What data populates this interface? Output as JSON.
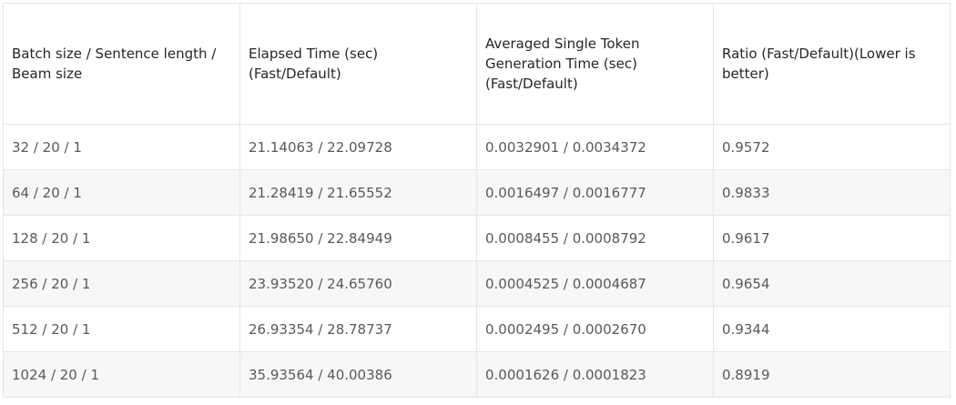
{
  "table": {
    "headers": [
      "Batch size / Sentence length / Beam size",
      "Elapsed Time (sec) (Fast/Default)",
      "Averaged Single Token Generation Time (sec)(Fast/Default)",
      "Ratio (Fast/Default)(Lower is better)"
    ],
    "rows": [
      [
        "32 / 20 / 1",
        "21.14063 / 22.09728",
        "0.0032901 / 0.0034372",
        "0.9572"
      ],
      [
        "64 / 20 / 1",
        "21.28419 / 21.65552",
        "0.0016497 / 0.0016777",
        "0.9833"
      ],
      [
        "128 / 20 / 1",
        "21.98650 / 22.84949",
        "0.0008455 / 0.0008792",
        "0.9617"
      ],
      [
        "256 / 20 / 1",
        "23.93520 / 24.65760",
        "0.0004525 / 0.0004687",
        "0.9654"
      ],
      [
        "512 / 20 / 1",
        "26.93354 / 28.78737",
        "0.0002495 / 0.0002670",
        "0.9344"
      ],
      [
        "1024 / 20 / 1",
        "35.93564 / 40.00386",
        "0.0001626 / 0.0001823",
        "0.8919"
      ]
    ]
  }
}
